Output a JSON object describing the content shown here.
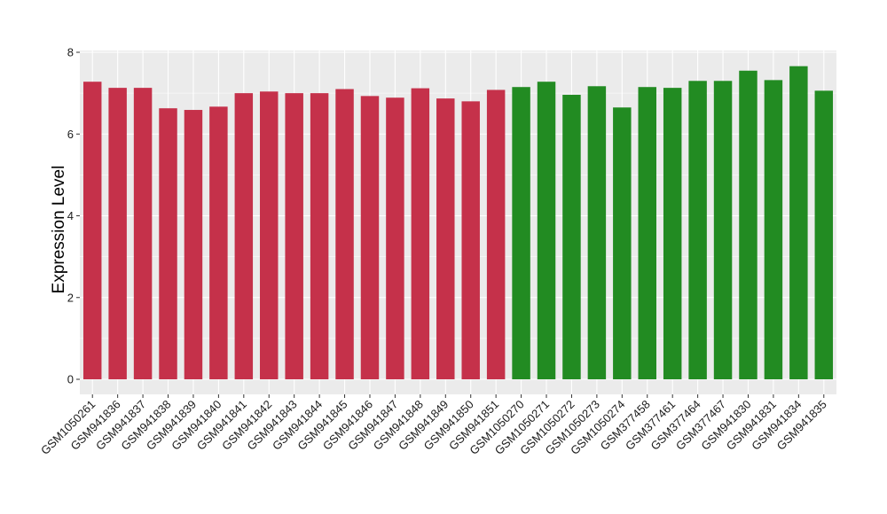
{
  "chart_data": {
    "type": "bar",
    "ylabel": "Expression Level",
    "xlabel": "",
    "ylim": [
      0,
      8
    ],
    "yticks": [
      0,
      2,
      4,
      6,
      8
    ],
    "grid": true,
    "legend": "none",
    "categories": [
      "GSM1050261",
      "GSM941836",
      "GSM941837",
      "GSM941838",
      "GSM941839",
      "GSM941840",
      "GSM941841",
      "GSM941842",
      "GSM941843",
      "GSM941844",
      "GSM941845",
      "GSM941846",
      "GSM941847",
      "GSM941848",
      "GSM941849",
      "GSM941850",
      "GSM941851",
      "GSM1050270",
      "GSM1050271",
      "GSM1050272",
      "GSM1050273",
      "GSM1050274",
      "GSM377458",
      "GSM377461",
      "GSM377464",
      "GSM377467",
      "GSM941830",
      "GSM941831",
      "GSM941834",
      "GSM941835"
    ],
    "values": [
      7.28,
      7.13,
      7.13,
      6.63,
      6.59,
      6.67,
      7.0,
      7.04,
      7.0,
      7.0,
      7.1,
      6.93,
      6.89,
      7.12,
      6.87,
      6.8,
      7.08,
      7.15,
      7.28,
      6.96,
      7.17,
      6.65,
      7.15,
      7.13,
      7.3,
      7.3,
      7.55,
      7.32,
      7.66,
      7.06
    ],
    "groups": [
      "red",
      "red",
      "red",
      "red",
      "red",
      "red",
      "red",
      "red",
      "red",
      "red",
      "red",
      "red",
      "red",
      "red",
      "red",
      "red",
      "red",
      "green",
      "green",
      "green",
      "green",
      "green",
      "green",
      "green",
      "green",
      "green",
      "green",
      "green",
      "green",
      "green"
    ],
    "colors": {
      "red": "#C5314A",
      "green": "#228B22",
      "panel": "#EBEBEB",
      "grid": "#FFFFFF"
    }
  }
}
